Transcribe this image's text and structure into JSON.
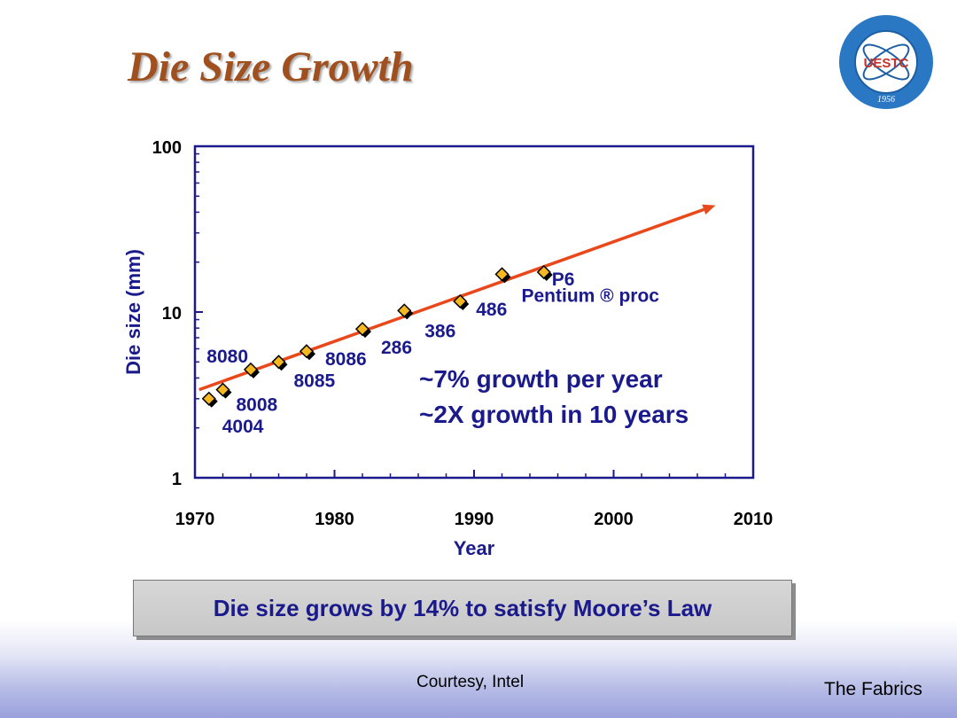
{
  "slide": {
    "title": "Die Size Growth",
    "callout": "Die size grows by 14% to satisfy Moore’s Law",
    "courtesy": "Courtesy, Intel",
    "footer": "The Fabrics",
    "logo": {
      "name": "uestc-logo-icon",
      "text": "UESTC",
      "year": "1956"
    }
  },
  "chart_data": {
    "type": "scatter",
    "xlabel": "Year",
    "ylabel": "Die size (mm)",
    "xlim": [
      1970,
      2010
    ],
    "ylim": [
      1,
      100
    ],
    "yscale": "log",
    "xticks": [
      1970,
      1980,
      1990,
      2000,
      2010
    ],
    "xtick_labels": [
      "1970",
      "1980",
      "1990",
      "2000",
      "2010"
    ],
    "yticks": [
      1,
      10,
      100
    ],
    "ytick_labels": [
      "1",
      "10",
      "100"
    ],
    "grid": false,
    "legend": "none",
    "points": [
      {
        "label": "4004",
        "x": 1971,
        "y": 3.0
      },
      {
        "label": "8008",
        "x": 1972,
        "y": 3.4
      },
      {
        "label": "8080",
        "x": 1974,
        "y": 4.5
      },
      {
        "label": "8085",
        "x": 1976,
        "y": 5.0
      },
      {
        "label": "8086",
        "x": 1978,
        "y": 5.8
      },
      {
        "label": "286",
        "x": 1982,
        "y": 7.9
      },
      {
        "label": "386",
        "x": 1985,
        "y": 10.2
      },
      {
        "label": "486",
        "x": 1989,
        "y": 11.6
      },
      {
        "label": "Pentium ® proc",
        "x": 1992,
        "y": 16.9
      },
      {
        "label": "P6",
        "x": 1995,
        "y": 17.4
      }
    ],
    "trend_line": {
      "x": [
        1970.3,
        2007.3
      ],
      "y": [
        3.4,
        44.0
      ],
      "color": "#e8481a",
      "arrow": true
    },
    "annotations": [
      "~7% growth per year",
      "~2X growth in 10 years"
    ],
    "colors": {
      "axis": "#1a1a8c",
      "marker_fill": "#f5b820",
      "marker_edge": "#000000",
      "text": "#1a1a8c"
    }
  }
}
